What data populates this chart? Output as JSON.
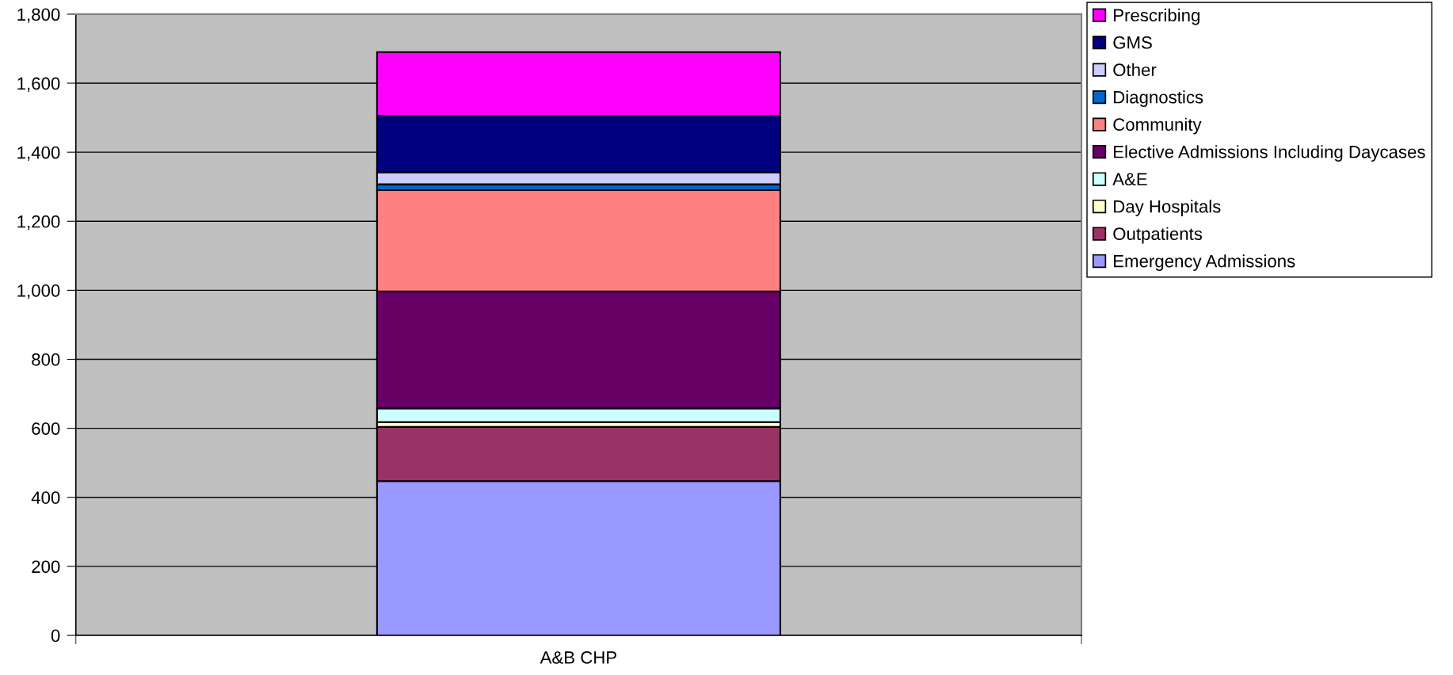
{
  "chart_data": {
    "type": "bar",
    "stacked": true,
    "categories": [
      "A&B CHP"
    ],
    "series": [
      {
        "name": "Emergency Admissions",
        "color": "#9999ff",
        "values": [
          447
        ]
      },
      {
        "name": "Outpatients",
        "color": "#993366",
        "values": [
          157
        ]
      },
      {
        "name": "Day Hospitals",
        "color": "#ffffcc",
        "values": [
          14
        ]
      },
      {
        "name": "A&E",
        "color": "#ccffff",
        "values": [
          40
        ]
      },
      {
        "name": "Elective Admissions Including Daycases",
        "color": "#660066",
        "values": [
          339
        ]
      },
      {
        "name": "Community",
        "color": "#ff8080",
        "values": [
          293
        ]
      },
      {
        "name": "Diagnostics",
        "color": "#0066cc",
        "values": [
          17
        ]
      },
      {
        "name": "Other",
        "color": "#ccccff",
        "values": [
          35
        ]
      },
      {
        "name": "GMS",
        "color": "#000080",
        "values": [
          164
        ]
      },
      {
        "name": "Prescribing",
        "color": "#ff00ff",
        "values": [
          184
        ]
      }
    ],
    "ylim": [
      0,
      1800
    ],
    "yticks": [
      0,
      200,
      400,
      600,
      800,
      {
        "value": 1000,
        "label": "1,000"
      },
      {
        "value": 1200,
        "label": "1,200"
      },
      {
        "value": 1400,
        "label": "1,400"
      },
      {
        "value": 1600,
        "label": "1,600"
      },
      {
        "value": 1800,
        "label": "1,800"
      }
    ],
    "grid": "y",
    "legend": "top right"
  }
}
